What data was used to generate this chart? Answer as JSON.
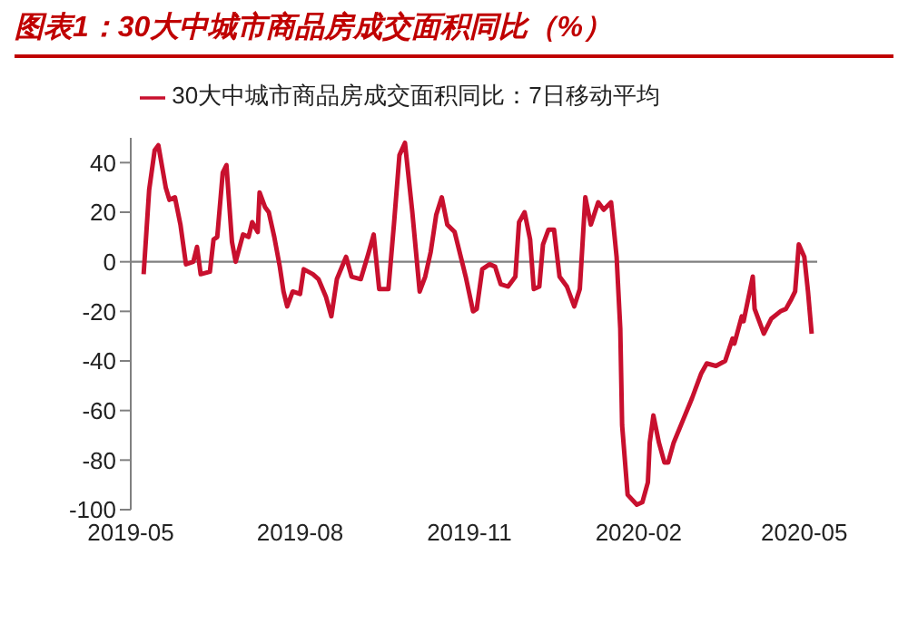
{
  "chart_data": {
    "type": "line",
    "title": "图表1：30大中城市商品房成交面积同比（%）",
    "x": [
      "2019-05-08",
      "2019-05-11",
      "2019-05-14",
      "2019-05-16",
      "2019-05-20",
      "2019-05-22",
      "2019-05-25",
      "2019-05-28",
      "2019-05-31",
      "2019-06-04",
      "2019-06-06",
      "2019-06-08",
      "2019-06-13",
      "2019-06-15",
      "2019-06-17",
      "2019-06-20",
      "2019-06-22",
      "2019-06-25",
      "2019-06-27",
      "2019-07-01",
      "2019-07-04",
      "2019-07-06",
      "2019-07-09",
      "2019-07-10",
      "2019-07-13",
      "2019-07-15",
      "2019-07-18",
      "2019-07-21",
      "2019-07-23",
      "2019-07-25",
      "2019-07-28",
      "2019-08-01",
      "2019-08-03",
      "2019-08-08",
      "2019-08-11",
      "2019-08-15",
      "2019-08-18",
      "2019-08-21",
      "2019-08-26",
      "2019-08-29",
      "2019-09-03",
      "2019-09-07",
      "2019-09-10",
      "2019-09-13",
      "2019-09-18",
      "2019-09-21",
      "2019-09-24",
      "2019-09-27",
      "2019-10-01",
      "2019-10-05",
      "2019-10-08",
      "2019-10-11",
      "2019-10-14",
      "2019-10-17",
      "2019-10-20",
      "2019-10-24",
      "2019-10-28",
      "2019-10-30",
      "2019-11-03",
      "2019-11-05",
      "2019-11-08",
      "2019-11-12",
      "2019-11-15",
      "2019-11-18",
      "2019-11-22",
      "2019-11-26",
      "2019-11-28",
      "2019-12-01",
      "2019-12-04",
      "2019-12-06",
      "2019-12-09",
      "2019-12-11",
      "2019-12-14",
      "2019-12-17",
      "2019-12-20",
      "2019-12-24",
      "2019-12-28",
      "2019-12-31",
      "2020-01-03",
      "2020-01-06",
      "2020-01-10",
      "2020-01-13",
      "2020-01-17",
      "2020-01-18",
      "2020-01-20",
      "2020-01-22",
      "2020-01-23",
      "2020-01-26",
      "2020-01-31",
      "2020-02-03",
      "2020-02-06",
      "2020-02-07",
      "2020-02-09",
      "2020-02-12",
      "2020-02-15",
      "2020-02-17",
      "2020-02-20",
      "2020-02-25",
      "2020-03-01",
      "2020-03-06",
      "2020-03-09",
      "2020-03-14",
      "2020-03-19",
      "2020-03-23",
      "2020-03-24",
      "2020-03-28",
      "2020-03-29",
      "2020-04-03",
      "2020-04-04",
      "2020-04-09",
      "2020-04-13",
      "2020-04-18",
      "2020-04-21",
      "2020-04-24",
      "2020-04-26",
      "2020-04-28",
      "2020-05-01",
      "2020-05-03",
      "2020-05-05"
    ],
    "series": [
      {
        "name": "30大中城市商品房成交面积同比：7日移动平均",
        "color": "#c8102e",
        "values": [
          -5,
          29,
          45,
          47,
          30,
          25,
          26,
          15,
          -1,
          0,
          6,
          -5,
          -4,
          9,
          10,
          36,
          39,
          8,
          0,
          11,
          10,
          16,
          12,
          28,
          22,
          20,
          10,
          -2,
          -12,
          -18,
          -12,
          -13,
          -3,
          -5,
          -7,
          -14,
          -22,
          -7,
          2,
          -6,
          -7,
          3,
          11,
          -11,
          -11,
          15,
          43,
          48,
          20,
          -12,
          -6,
          4,
          19,
          26,
          15,
          12,
          0,
          -6,
          -20,
          -19,
          -3,
          -1,
          -2,
          -9,
          -10,
          -6,
          16,
          20,
          9,
          -11,
          -10,
          7,
          13,
          13,
          -6,
          -10,
          -18,
          -11,
          26,
          15,
          24,
          21,
          24,
          17,
          2,
          -27,
          -66,
          -94,
          -98,
          -97,
          -89,
          -73,
          -62,
          -73,
          -81,
          -81,
          -73,
          -64,
          -55,
          -45,
          -41,
          -42,
          -40,
          -31,
          -33,
          -22,
          -24,
          -6,
          -19,
          -29,
          -23,
          -20,
          -19,
          -15,
          -12,
          7,
          2,
          -12,
          -29
        ]
      }
    ],
    "xlim": [
      "2019-05-01",
      "2020-05-08"
    ],
    "xticks": [
      "2019-05",
      "2019-08",
      "2019-11",
      "2020-02",
      "2020-05"
    ],
    "ylim": [
      -100,
      50
    ],
    "yticks": [
      -100,
      -80,
      -60,
      -40,
      -20,
      0,
      20,
      40
    ],
    "ref_lines": [
      {
        "axis": "y",
        "value": 0,
        "color": "#808080"
      }
    ],
    "legend": "top"
  }
}
